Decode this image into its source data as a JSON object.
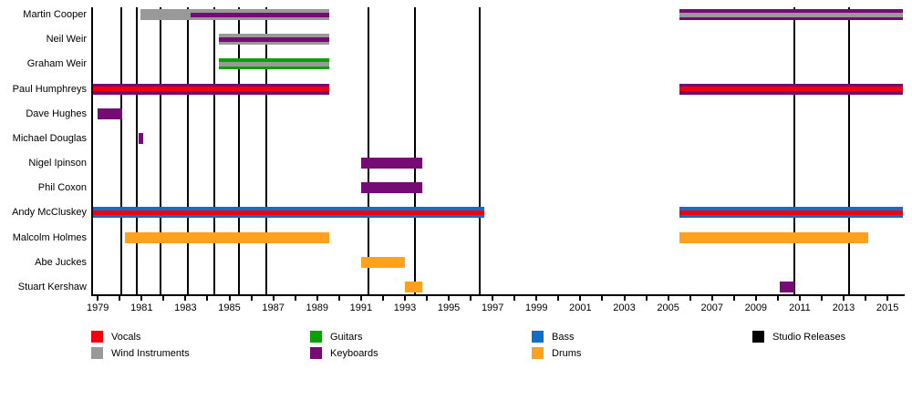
{
  "chart_data": {
    "type": "timeline",
    "title": "",
    "xlabel": "",
    "ylabel": "",
    "x_axis": {
      "min": 1978.7,
      "max": 2015.7,
      "minor_tick_every_years": 1,
      "labeled_tick_years": [
        1979,
        1981,
        1983,
        1985,
        1987,
        1989,
        1991,
        1993,
        1995,
        1997,
        1999,
        2001,
        2003,
        2005,
        2007,
        2009,
        2011,
        2013,
        2015
      ]
    },
    "grid": "vertical studio-release lines only",
    "legend_position": "bottom",
    "rows": [
      {
        "name": "Martin Cooper",
        "segments": [
          {
            "start": 1980.95,
            "end": 1989.55,
            "base": "wind_instruments",
            "stripes": [
              {
                "role": "keyboards",
                "start": 1983.25,
                "end": 1989.55
              }
            ]
          },
          {
            "start": 2005.5,
            "end": 2015.7,
            "base": "keyboards",
            "stripes": [
              {
                "role": "wind_instruments",
                "start": 2005.5,
                "end": 2015.7
              }
            ]
          }
        ]
      },
      {
        "name": "Neil Weir",
        "segments": [
          {
            "start": 1984.5,
            "end": 1989.55,
            "base": "wind_instruments",
            "stripes": [
              {
                "role": "keyboards",
                "start": 1984.5,
                "end": 1989.55
              }
            ]
          }
        ]
      },
      {
        "name": "Graham Weir",
        "segments": [
          {
            "start": 1984.5,
            "end": 1989.55,
            "base": "guitars",
            "stripes": [
              {
                "role": "wind_instruments",
                "start": 1984.5,
                "end": 1989.55
              }
            ]
          }
        ]
      },
      {
        "name": "Paul Humphreys",
        "segments": [
          {
            "start": 1978.7,
            "end": 1989.55,
            "base": "keyboards",
            "stripes": [
              {
                "role": "vocals",
                "start": 1978.7,
                "end": 1989.55
              }
            ]
          },
          {
            "start": 2005.5,
            "end": 2015.7,
            "base": "keyboards",
            "stripes": [
              {
                "role": "vocals",
                "start": 2005.5,
                "end": 2015.7
              }
            ]
          }
        ]
      },
      {
        "name": "Dave Hughes",
        "segments": [
          {
            "start": 1979.0,
            "end": 1980.1,
            "base": "keyboards",
            "stripes": []
          }
        ]
      },
      {
        "name": "Michael Douglas",
        "segments": [
          {
            "start": 1980.85,
            "end": 1981.05,
            "base": "keyboards",
            "stripes": []
          }
        ]
      },
      {
        "name": "Nigel Ipinson",
        "segments": [
          {
            "start": 1991.0,
            "end": 1993.8,
            "base": "keyboards",
            "stripes": []
          }
        ]
      },
      {
        "name": "Phil Coxon",
        "segments": [
          {
            "start": 1991.0,
            "end": 1993.8,
            "base": "keyboards",
            "stripes": []
          }
        ]
      },
      {
        "name": "Andy McCluskey",
        "segments": [
          {
            "start": 1978.7,
            "end": 1996.6,
            "base": "bass",
            "stripes": [
              {
                "role": "vocals",
                "start": 1978.7,
                "end": 1996.6
              }
            ]
          },
          {
            "start": 2005.5,
            "end": 2015.7,
            "base": "bass",
            "stripes": [
              {
                "role": "vocals",
                "start": 2005.5,
                "end": 2015.7
              }
            ]
          }
        ]
      },
      {
        "name": "Malcolm Holmes",
        "segments": [
          {
            "start": 1980.25,
            "end": 1989.55,
            "base": "drums",
            "stripes": []
          },
          {
            "start": 2005.5,
            "end": 2014.1,
            "base": "drums",
            "stripes": []
          }
        ]
      },
      {
        "name": "Abe Juckes",
        "segments": [
          {
            "start": 1991.0,
            "end": 1993.0,
            "base": "drums",
            "stripes": []
          }
        ]
      },
      {
        "name": "Stuart Kershaw",
        "segments": [
          {
            "start": 1993.0,
            "end": 1993.8,
            "base": "drums",
            "stripes": []
          },
          {
            "start": 2010.1,
            "end": 2010.75,
            "base": "keyboards",
            "stripes": []
          }
        ]
      }
    ],
    "studio_releases": [
      1980.08,
      1980.76,
      1981.88,
      1983.1,
      1984.3,
      1985.45,
      1986.7,
      1991.35,
      1993.45,
      1996.4,
      2010.75,
      2013.25
    ],
    "legend": [
      {
        "label": "Vocals",
        "role": "vocals",
        "color": "#f2000c"
      },
      {
        "label": "Wind Instruments",
        "role": "wind_instruments",
        "color": "#999999"
      },
      {
        "label": "Guitars",
        "role": "guitars",
        "color": "#0aa00a"
      },
      {
        "label": "Keyboards",
        "role": "keyboards",
        "color": "#760b76"
      },
      {
        "label": "Bass",
        "role": "bass",
        "color": "#0e6ec8"
      },
      {
        "label": "Drums",
        "role": "drums",
        "color": "#ffa01f"
      },
      {
        "label": "Studio Releases",
        "role": "studio_releases",
        "color": "#000000"
      }
    ]
  },
  "colors": {
    "vocals": "#f2000c",
    "wind_instruments": "#999999",
    "guitars": "#0aa00a",
    "keyboards": "#760b76",
    "bass": "#0e6ec8",
    "drums": "#ffa01f",
    "studio_releases": "#000000",
    "axis": "#000000",
    "background": "#ffffff"
  }
}
